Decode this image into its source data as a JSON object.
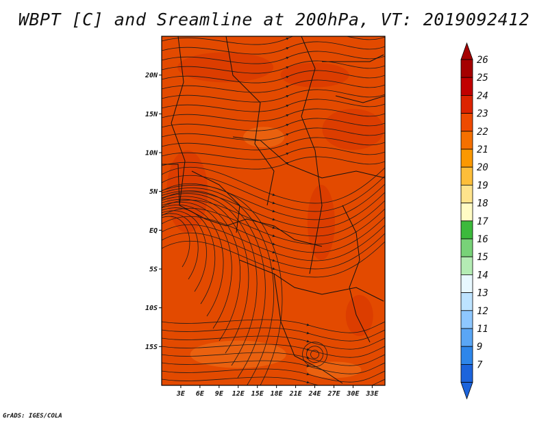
{
  "title": "WBPT [C] and Sreamline at 200hPa, VT: 2019092412",
  "credit": "GrADS: IGES/COLA",
  "chart_data": {
    "type": "heatmap",
    "variable": "WBPT [C]",
    "overlay": "Sreamline",
    "level": "200hPa",
    "valid_time": "2019092412",
    "x_axis": {
      "range": [
        0,
        35
      ],
      "ticks": [
        {
          "value": 3,
          "label": "3E"
        },
        {
          "value": 6,
          "label": "6E"
        },
        {
          "value": 9,
          "label": "9E"
        },
        {
          "value": 12,
          "label": "12E"
        },
        {
          "value": 15,
          "label": "15E"
        },
        {
          "value": 18,
          "label": "18E"
        },
        {
          "value": 21,
          "label": "21E"
        },
        {
          "value": 24,
          "label": "24E"
        },
        {
          "value": 27,
          "label": "27E"
        },
        {
          "value": 30,
          "label": "30E"
        },
        {
          "value": 33,
          "label": "33E"
        }
      ]
    },
    "y_axis": {
      "range": [
        -20,
        25
      ],
      "ticks": [
        {
          "value": 20,
          "label": "20N"
        },
        {
          "value": 15,
          "label": "15N"
        },
        {
          "value": 10,
          "label": "10N"
        },
        {
          "value": 5,
          "label": "5N"
        },
        {
          "value": 0,
          "label": "EQ"
        },
        {
          "value": -5,
          "label": "5S"
        },
        {
          "value": -10,
          "label": "10S"
        },
        {
          "value": -15,
          "label": "15S"
        }
      ]
    },
    "colorbar": {
      "levels": [
        "26",
        "25",
        "24",
        "23",
        "22",
        "21",
        "20",
        "19",
        "18",
        "17",
        "16",
        "15",
        "14",
        "13",
        "12",
        "11",
        "9",
        "7"
      ],
      "colors": [
        "#a50000",
        "#c10000",
        "#dc2300",
        "#ee4a00",
        "#f57000",
        "#fb9800",
        "#fdbe3a",
        "#fee38c",
        "#fffbc4",
        "#3cba3c",
        "#78d278",
        "#b4ecb4",
        "#e8f8ff",
        "#bde3ff",
        "#8ec7ff",
        "#5aa6f5",
        "#2e86ea",
        "#1c64dc"
      ],
      "top_arrow_color": "#a50000",
      "bottom_arrow_color": "#1c64dc"
    },
    "field_colors": {
      "dominant": "#e34a00",
      "warm": "#d93a00",
      "cool": "#ec6a14"
    }
  }
}
